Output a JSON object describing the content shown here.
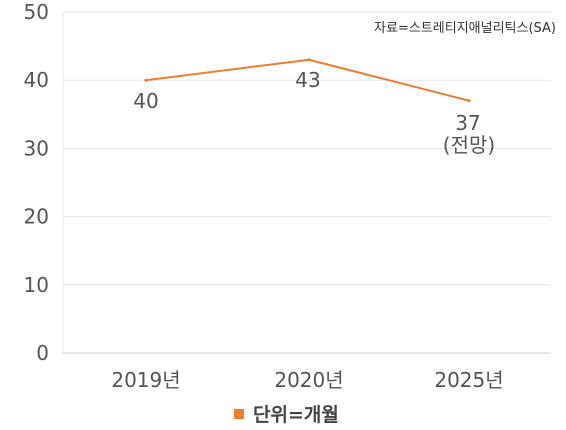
{
  "source": "자료=스트레티지애널리틱스(SA)",
  "legend_label": "단위=개월",
  "colors": {
    "line": "#ED7D31",
    "grid": "#E6E6E6",
    "text": "#555555"
  },
  "chart_data": {
    "type": "line",
    "categories": [
      "2019년",
      "2020년",
      "2025년"
    ],
    "series": [
      {
        "values": [
          40,
          43,
          37
        ]
      }
    ],
    "data_labels": [
      "40",
      "43",
      "37"
    ],
    "annotations": [
      "(전망)"
    ],
    "yticks": [
      "0",
      "10",
      "20",
      "30",
      "40",
      "50"
    ],
    "ylim": [
      0,
      50
    ],
    "grid": true,
    "legend": "bottom-center"
  }
}
